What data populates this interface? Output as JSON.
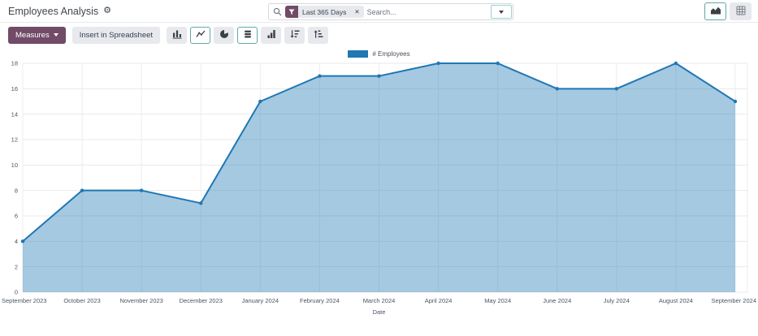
{
  "header": {
    "title": "Employees Analysis",
    "search": {
      "facet_label": "Last 365 Days",
      "placeholder": "Search..."
    }
  },
  "toolbar": {
    "measures_label": "Measures",
    "spreadsheet_label": "Insert in Spreadsheet",
    "buttons": [
      {
        "icon": "bar-chart-icon",
        "active": false
      },
      {
        "icon": "line-chart-icon",
        "active": true
      },
      {
        "icon": "pie-chart-icon",
        "active": false
      },
      {
        "icon": "stacked-icon",
        "active": true
      },
      {
        "icon": "cumulative-icon",
        "active": false
      },
      {
        "icon": "sort-desc-icon",
        "active": false
      },
      {
        "icon": "sort-asc-icon",
        "active": false
      }
    ]
  },
  "view_switcher": [
    {
      "icon": "area-chart-icon",
      "view": "graph",
      "active": true
    },
    {
      "icon": "grid-icon",
      "view": "pivot",
      "active": false
    }
  ],
  "icons": {
    "gear": "⚙",
    "close": "✕"
  },
  "colors": {
    "brand": "#714B67",
    "accent": "#017E84",
    "chart_line": "#1F77B4",
    "chart_fill": "rgba(31,119,180,0.4)",
    "gridline": "#e9e9e9"
  },
  "chart_data": {
    "type": "area",
    "title": "",
    "categories": [
      "September 2023",
      "October 2023",
      "November 2023",
      "December 2023",
      "January 2024",
      "February 2024",
      "March 2024",
      "April 2024",
      "May 2024",
      "June 2024",
      "July 2024",
      "August 2024",
      "September 2024"
    ],
    "series": [
      {
        "name": "# Employees",
        "values": [
          4,
          8,
          8,
          7,
          15,
          17,
          17,
          18,
          18,
          16,
          16,
          18,
          15
        ]
      }
    ],
    "xlabel": "Date",
    "ylabel": "",
    "ylim": [
      0,
      18
    ],
    "ytick_step": 2,
    "grid": true,
    "legend_position": "top",
    "line_color": "#1F77B4",
    "fill_color": "rgba(31,119,180,0.4)"
  }
}
